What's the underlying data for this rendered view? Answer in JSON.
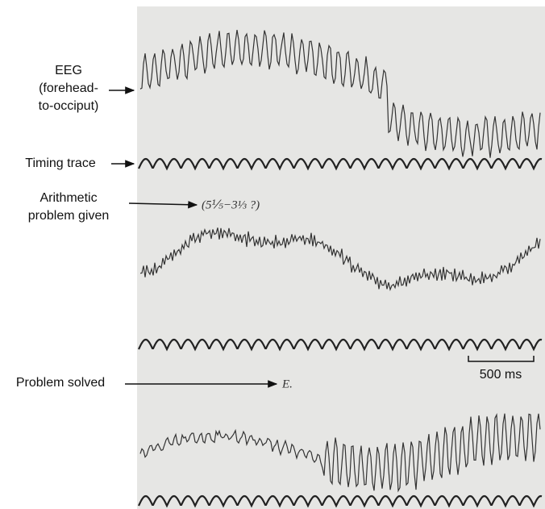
{
  "labels": {
    "eeg": [
      "EEG",
      "(forehead-",
      "to-occiput)"
    ],
    "timing": "Timing trace",
    "arithmetic": [
      "Arithmetic",
      "problem given"
    ],
    "problem_annotation": "(5⅕−3⅓ ?)",
    "solved": "Problem solved",
    "solved_annotation": "E.",
    "scale": "500 ms"
  }
}
